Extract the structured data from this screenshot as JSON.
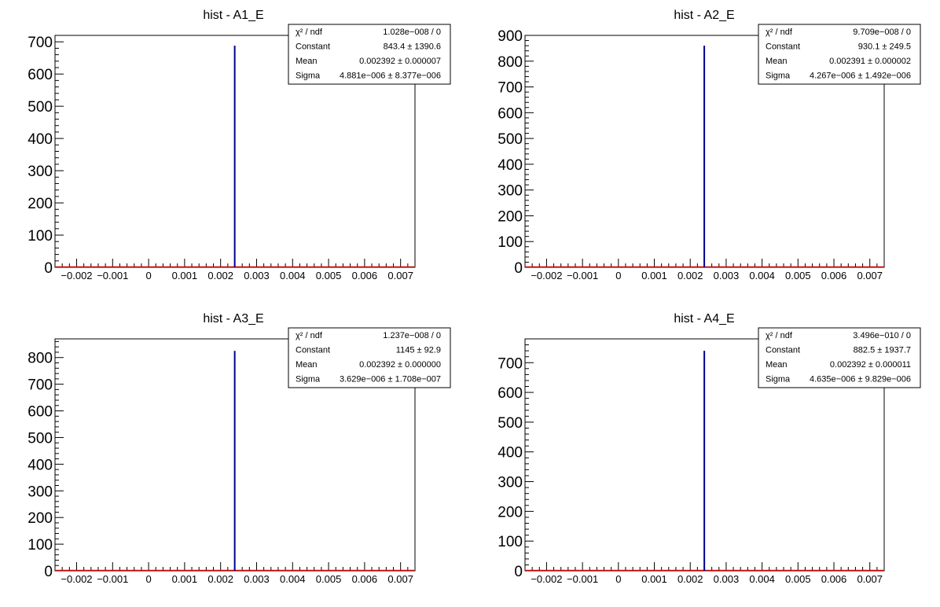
{
  "chart_data": [
    {
      "type": "histogram",
      "title": "hist - A1_E",
      "xlim": [
        -0.0026,
        0.0074
      ],
      "ylim": [
        0,
        720
      ],
      "x_ticks": [
        -0.002,
        -0.001,
        0,
        0.001,
        0.002,
        0.003,
        0.004,
        0.005,
        0.006,
        0.007
      ],
      "x_tick_labels": [
        "−0.002",
        "−0.001",
        "0",
        "0.001",
        "0.002",
        "0.003",
        "0.004",
        "0.005",
        "0.006",
        "0.007"
      ],
      "y_ticks": [
        0,
        100,
        200,
        300,
        400,
        500,
        600,
        700
      ],
      "y_tick_labels": [
        "0",
        "100",
        "200",
        "300",
        "400",
        "500",
        "600",
        "700"
      ],
      "series": [
        {
          "x": [
            0.002392
          ],
          "values": [
            688
          ]
        }
      ],
      "fit_color": "#cc0000",
      "hist_color": "#00008b",
      "stats": [
        {
          "label": "χ² / ndf",
          "value": "1.028e−008 / 0"
        },
        {
          "label": "Constant",
          "value": "843.4 ± 1390.6"
        },
        {
          "label": "Mean",
          "value": "0.002392 ± 0.000007"
        },
        {
          "label": "Sigma",
          "value": "4.881e−006 ± 8.377e−006"
        }
      ]
    },
    {
      "type": "histogram",
      "title": "hist - A2_E",
      "xlim": [
        -0.0026,
        0.0074
      ],
      "ylim": [
        0,
        900
      ],
      "x_ticks": [
        -0.002,
        -0.001,
        0,
        0.001,
        0.002,
        0.003,
        0.004,
        0.005,
        0.006,
        0.007
      ],
      "x_tick_labels": [
        "−0.002",
        "−0.001",
        "0",
        "0.001",
        "0.002",
        "0.003",
        "0.004",
        "0.005",
        "0.006",
        "0.007"
      ],
      "y_ticks": [
        0,
        100,
        200,
        300,
        400,
        500,
        600,
        700,
        800,
        900
      ],
      "y_tick_labels": [
        "0",
        "100",
        "200",
        "300",
        "400",
        "500",
        "600",
        "700",
        "800",
        "900"
      ],
      "series": [
        {
          "x": [
            0.002391
          ],
          "values": [
            860
          ]
        }
      ],
      "fit_color": "#cc0000",
      "hist_color": "#00008b",
      "stats": [
        {
          "label": "χ² / ndf",
          "value": "9.709e−008 / 0"
        },
        {
          "label": "Constant",
          "value": "930.1 ± 249.5"
        },
        {
          "label": "Mean",
          "value": "0.002391 ± 0.000002"
        },
        {
          "label": "Sigma",
          "value": "4.267e−006 ± 1.492e−006"
        }
      ]
    },
    {
      "type": "histogram",
      "title": "hist - A3_E",
      "xlim": [
        -0.0026,
        0.0074
      ],
      "ylim": [
        0,
        870
      ],
      "x_ticks": [
        -0.002,
        -0.001,
        0,
        0.001,
        0.002,
        0.003,
        0.004,
        0.005,
        0.006,
        0.007
      ],
      "x_tick_labels": [
        "−0.002",
        "−0.001",
        "0",
        "0.001",
        "0.002",
        "0.003",
        "0.004",
        "0.005",
        "0.006",
        "0.007"
      ],
      "y_ticks": [
        0,
        100,
        200,
        300,
        400,
        500,
        600,
        700,
        800
      ],
      "y_tick_labels": [
        "0",
        "100",
        "200",
        "300",
        "400",
        "500",
        "600",
        "700",
        "800"
      ],
      "series": [
        {
          "x": [
            0.002392
          ],
          "values": [
            825
          ]
        }
      ],
      "fit_color": "#cc0000",
      "hist_color": "#00008b",
      "stats": [
        {
          "label": "χ² / ndf",
          "value": "1.237e−008 / 0"
        },
        {
          "label": "Constant",
          "value": "1145 ± 92.9"
        },
        {
          "label": "Mean",
          "value": "0.002392 ± 0.000000"
        },
        {
          "label": "Sigma",
          "value": "3.629e−006 ± 1.708e−007"
        }
      ]
    },
    {
      "type": "histogram",
      "title": "hist - A4_E",
      "xlim": [
        -0.0026,
        0.0074
      ],
      "ylim": [
        0,
        780
      ],
      "x_ticks": [
        -0.002,
        -0.001,
        0,
        0.001,
        0.002,
        0.003,
        0.004,
        0.005,
        0.006,
        0.007
      ],
      "x_tick_labels": [
        "−0.002",
        "−0.001",
        "0",
        "0.001",
        "0.002",
        "0.003",
        "0.004",
        "0.005",
        "0.006",
        "0.007"
      ],
      "y_ticks": [
        0,
        100,
        200,
        300,
        400,
        500,
        600,
        700
      ],
      "y_tick_labels": [
        "0",
        "100",
        "200",
        "300",
        "400",
        "500",
        "600",
        "700"
      ],
      "series": [
        {
          "x": [
            0.002392
          ],
          "values": [
            740
          ]
        }
      ],
      "fit_color": "#cc0000",
      "hist_color": "#00008b",
      "stats": [
        {
          "label": "χ² / ndf",
          "value": "3.496e−010 / 0"
        },
        {
          "label": "Constant",
          "value": "882.5 ± 1937.7"
        },
        {
          "label": "Mean",
          "value": "0.002392 ± 0.000011"
        },
        {
          "label": "Sigma",
          "value": "4.635e−006 ± 9.829e−006"
        }
      ]
    }
  ]
}
